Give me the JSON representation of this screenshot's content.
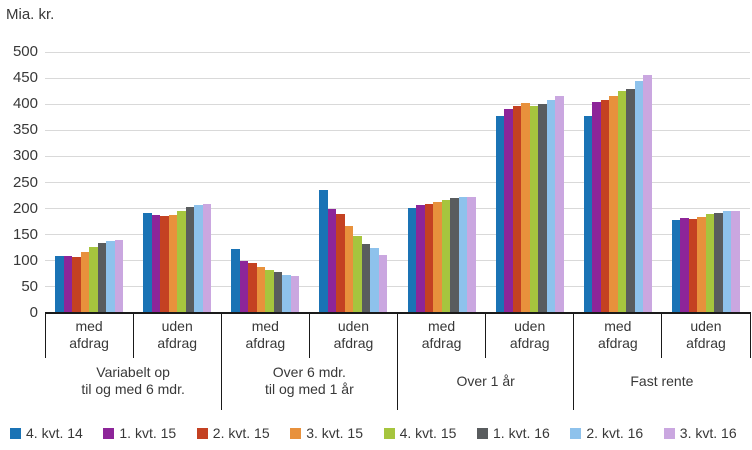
{
  "chart_data": {
    "type": "bar",
    "unit_label": "Mia. kr.",
    "grid": true,
    "legend_position": "bottom",
    "y_axis": {
      "min": 0,
      "max": 500,
      "step": 50,
      "tick_labels": [
        "0",
        "50",
        "100",
        "150",
        "200",
        "250",
        "300",
        "350",
        "400",
        "450",
        "500"
      ]
    },
    "groups": [
      {
        "label_lines": [
          "Variabelt op",
          "til og med 6 mdr."
        ]
      },
      {
        "label_lines": [
          "Over 6 mdr.",
          "til og med 1 år"
        ]
      },
      {
        "label_lines": [
          "Over 1 år"
        ]
      },
      {
        "label_lines": [
          "Fast rente"
        ]
      }
    ],
    "subgroup_label_lines": [
      [
        "med",
        "afdrag"
      ],
      [
        "uden",
        "afdrag"
      ]
    ],
    "subgroup_order": [
      "Variabelt op til og med 6 mdr. - med afdrag",
      "Variabelt op til og med 6 mdr. - uden afdrag",
      "Over 6 mdr. til og med 1 år - med afdrag",
      "Over 6 mdr. til og med 1 år - uden afdrag",
      "Over 1 år - med afdrag",
      "Over 1 år - uden afdrag",
      "Fast rente - med afdrag",
      "Fast rente - uden afdrag"
    ],
    "series": [
      {
        "name": "4. kvt. 14",
        "color": "#1a73b5",
        "values": [
          110,
          191,
          123,
          235,
          202,
          377,
          377,
          179
        ]
      },
      {
        "name": "1. kvt. 15",
        "color": "#8d2599",
        "values": [
          109,
          187,
          100,
          200,
          207,
          391,
          405,
          182
        ]
      },
      {
        "name": "2. kvt. 15",
        "color": "#c44122",
        "values": [
          108,
          185,
          95,
          189,
          208,
          396,
          408,
          180
        ]
      },
      {
        "name": "3. kvt. 15",
        "color": "#e8913c",
        "values": [
          117,
          188,
          88,
          166,
          212,
          403,
          416,
          184
        ]
      },
      {
        "name": "4. kvt. 15",
        "color": "#a6c53e",
        "values": [
          127,
          195,
          83,
          147,
          216,
          397,
          425,
          190
        ]
      },
      {
        "name": "1. kvt. 16",
        "color": "#595c5e",
        "values": [
          135,
          204,
          78,
          133,
          220,
          400,
          430,
          192
        ]
      },
      {
        "name": "2. kvt. 16",
        "color": "#8ec2ec",
        "values": [
          137,
          207,
          73,
          124,
          222,
          408,
          444,
          195
        ]
      },
      {
        "name": "3. kvt. 16",
        "color": "#caa7e0",
        "values": [
          140,
          209,
          70,
          112,
          222,
          416,
          455,
          196
        ]
      }
    ]
  }
}
